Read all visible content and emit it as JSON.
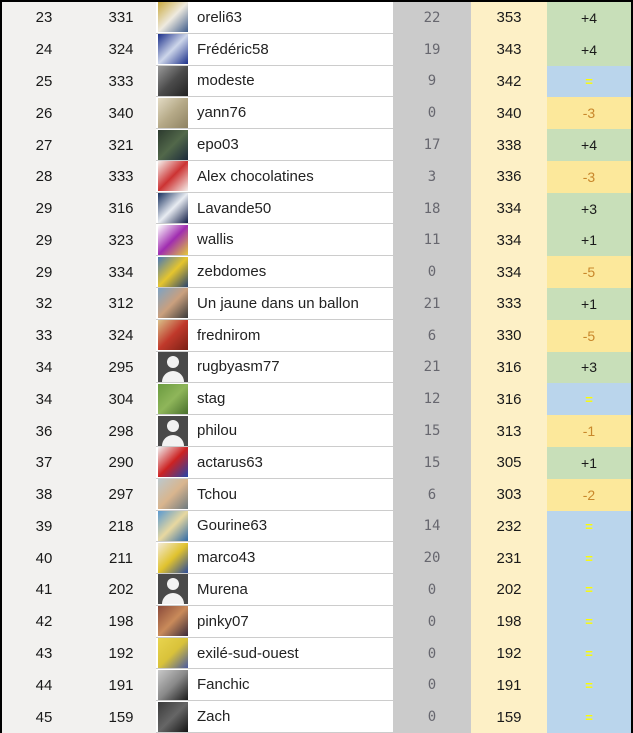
{
  "table": {
    "description": "forum-ranking-leaderboard",
    "colors": {
      "rank_bg": "#f2f1ef",
      "points_bg": "#cbcbcb",
      "points_text": "#67676f",
      "total_bg": "#fdf0c6",
      "trend_up_bg": "#c8dfb9",
      "trend_down_bg": "#fce89b",
      "trend_equal_bg": "#bad5ec",
      "trend_up_text": "#1a1a1a",
      "trend_down_text": "#c8872b",
      "trend_equal_text": "#fdfd00",
      "row_divider": "#cccccc",
      "frame_border": "#000000"
    },
    "rows": [
      {
        "rank": "23",
        "score": "331",
        "username": "oreli63",
        "points": "22",
        "total": "353",
        "trend": "+4",
        "trend_dir": "up",
        "avatar": {
          "kind": "image",
          "colors": [
            "#c9a93e",
            "#eeeadf",
            "#3c5a8a"
          ]
        }
      },
      {
        "rank": "24",
        "score": "324",
        "username": "Frédéric58",
        "points": "19",
        "total": "343",
        "trend": "+4",
        "trend_dir": "up",
        "avatar": {
          "kind": "image",
          "colors": [
            "#1b2f8a",
            "#cdd6ea",
            "#1b2f8a"
          ]
        }
      },
      {
        "rank": "25",
        "score": "333",
        "username": "modeste",
        "points": "9",
        "total": "342",
        "trend": "=",
        "trend_dir": "eq",
        "avatar": {
          "kind": "image",
          "colors": [
            "#9a9a9a",
            "#4b4b4b",
            "#222222"
          ]
        }
      },
      {
        "rank": "26",
        "score": "340",
        "username": "yann76",
        "points": "0",
        "total": "340",
        "trend": "-3",
        "trend_dir": "down",
        "avatar": {
          "kind": "image",
          "colors": [
            "#e3dbc4",
            "#b5a987",
            "#8e8262"
          ]
        }
      },
      {
        "rank": "27",
        "score": "321",
        "username": "epo03",
        "points": "17",
        "total": "338",
        "trend": "+4",
        "trend_dir": "up",
        "avatar": {
          "kind": "image",
          "colors": [
            "#2c3a2e",
            "#52684a",
            "#1c2a3a"
          ]
        }
      },
      {
        "rank": "28",
        "score": "333",
        "username": "Alex chocolatines",
        "points": "3",
        "total": "336",
        "trend": "-3",
        "trend_dir": "down",
        "avatar": {
          "kind": "image",
          "colors": [
            "#f5f0ec",
            "#cc3333",
            "#f5f0ec"
          ]
        }
      },
      {
        "rank": "29",
        "score": "316",
        "username": "Lavande50",
        "points": "18",
        "total": "334",
        "trend": "+3",
        "trend_dir": "up",
        "avatar": {
          "kind": "image",
          "colors": [
            "#18305e",
            "#e8ecf2",
            "#101c46"
          ]
        }
      },
      {
        "rank": "29",
        "score": "323",
        "username": "wallis",
        "points": "11",
        "total": "334",
        "trend": "+1",
        "trend_dir": "up",
        "avatar": {
          "kind": "image",
          "colors": [
            "#ffffff",
            "#a02db0",
            "#e3c93a"
          ]
        }
      },
      {
        "rank": "29",
        "score": "334",
        "username": "zebdomes",
        "points": "0",
        "total": "334",
        "trend": "-5",
        "trend_dir": "down",
        "avatar": {
          "kind": "image",
          "colors": [
            "#4a79b5",
            "#e5c52e",
            "#28436e"
          ]
        }
      },
      {
        "rank": "32",
        "score": "312",
        "username": "Un jaune dans un ballon",
        "points": "21",
        "total": "333",
        "trend": "+1",
        "trend_dir": "up",
        "avatar": {
          "kind": "image",
          "colors": [
            "#7da3c4",
            "#caa07e",
            "#3a3a3a"
          ]
        }
      },
      {
        "rank": "33",
        "score": "324",
        "username": "frednirom",
        "points": "6",
        "total": "330",
        "trend": "-5",
        "trend_dir": "down",
        "avatar": {
          "kind": "image",
          "colors": [
            "#d9c089",
            "#c0392b",
            "#7a1f14"
          ]
        }
      },
      {
        "rank": "34",
        "score": "295",
        "username": "rugbyasm77",
        "points": "21",
        "total": "316",
        "trend": "+3",
        "trend_dir": "up",
        "avatar": {
          "kind": "default"
        }
      },
      {
        "rank": "34",
        "score": "304",
        "username": "stag",
        "points": "12",
        "total": "316",
        "trend": "=",
        "trend_dir": "eq",
        "avatar": {
          "kind": "image",
          "colors": [
            "#6a9a3f",
            "#8fb65a",
            "#49702c"
          ]
        }
      },
      {
        "rank": "36",
        "score": "298",
        "username": "philou",
        "points": "15",
        "total": "313",
        "trend": "-1",
        "trend_dir": "down",
        "avatar": {
          "kind": "default"
        }
      },
      {
        "rank": "37",
        "score": "290",
        "username": "actarus63",
        "points": "15",
        "total": "305",
        "trend": "+1",
        "trend_dir": "up",
        "avatar": {
          "kind": "image",
          "colors": [
            "#f0f0f0",
            "#cc2222",
            "#2244aa"
          ]
        }
      },
      {
        "rank": "38",
        "score": "297",
        "username": "Tchou",
        "points": "6",
        "total": "303",
        "trend": "-2",
        "trend_dir": "down",
        "avatar": {
          "kind": "image",
          "colors": [
            "#bcc8cc",
            "#d9b58e",
            "#6e7a80"
          ]
        }
      },
      {
        "rank": "39",
        "score": "218",
        "username": "Gourine63",
        "points": "14",
        "total": "232",
        "trend": "=",
        "trend_dir": "eq",
        "avatar": {
          "kind": "image",
          "colors": [
            "#5a9ad0",
            "#e8d8a0",
            "#2e6aa8"
          ]
        }
      },
      {
        "rank": "40",
        "score": "211",
        "username": "marco43",
        "points": "20",
        "total": "231",
        "trend": "=",
        "trend_dir": "eq",
        "avatar": {
          "kind": "image",
          "colors": [
            "#f2ead8",
            "#e0c22e",
            "#2a4a9a"
          ]
        }
      },
      {
        "rank": "41",
        "score": "202",
        "username": "Murena",
        "points": "0",
        "total": "202",
        "trend": "=",
        "trend_dir": "eq",
        "avatar": {
          "kind": "default"
        }
      },
      {
        "rank": "42",
        "score": "198",
        "username": "pinky07",
        "points": "0",
        "total": "198",
        "trend": "=",
        "trend_dir": "eq",
        "avatar": {
          "kind": "image",
          "colors": [
            "#8a4a3a",
            "#c98a5a",
            "#3a2a3a"
          ]
        }
      },
      {
        "rank": "43",
        "score": "192",
        "username": "exilé-sud-ouest",
        "points": "0",
        "total": "192",
        "trend": "=",
        "trend_dir": "eq",
        "avatar": {
          "kind": "image",
          "colors": [
            "#e8d44e",
            "#d9c23a",
            "#4a5aa0"
          ]
        }
      },
      {
        "rank": "44",
        "score": "191",
        "username": "Fanchic",
        "points": "0",
        "total": "191",
        "trend": "=",
        "trend_dir": "eq",
        "avatar": {
          "kind": "image",
          "colors": [
            "#c9c9c9",
            "#8a8a8a",
            "#1a1a1a"
          ]
        }
      },
      {
        "rank": "45",
        "score": "159",
        "username": "Zach",
        "points": "0",
        "total": "159",
        "trend": "=",
        "trend_dir": "eq",
        "avatar": {
          "kind": "image",
          "colors": [
            "#3a3a3a",
            "#666666",
            "#141414"
          ]
        }
      }
    ]
  }
}
